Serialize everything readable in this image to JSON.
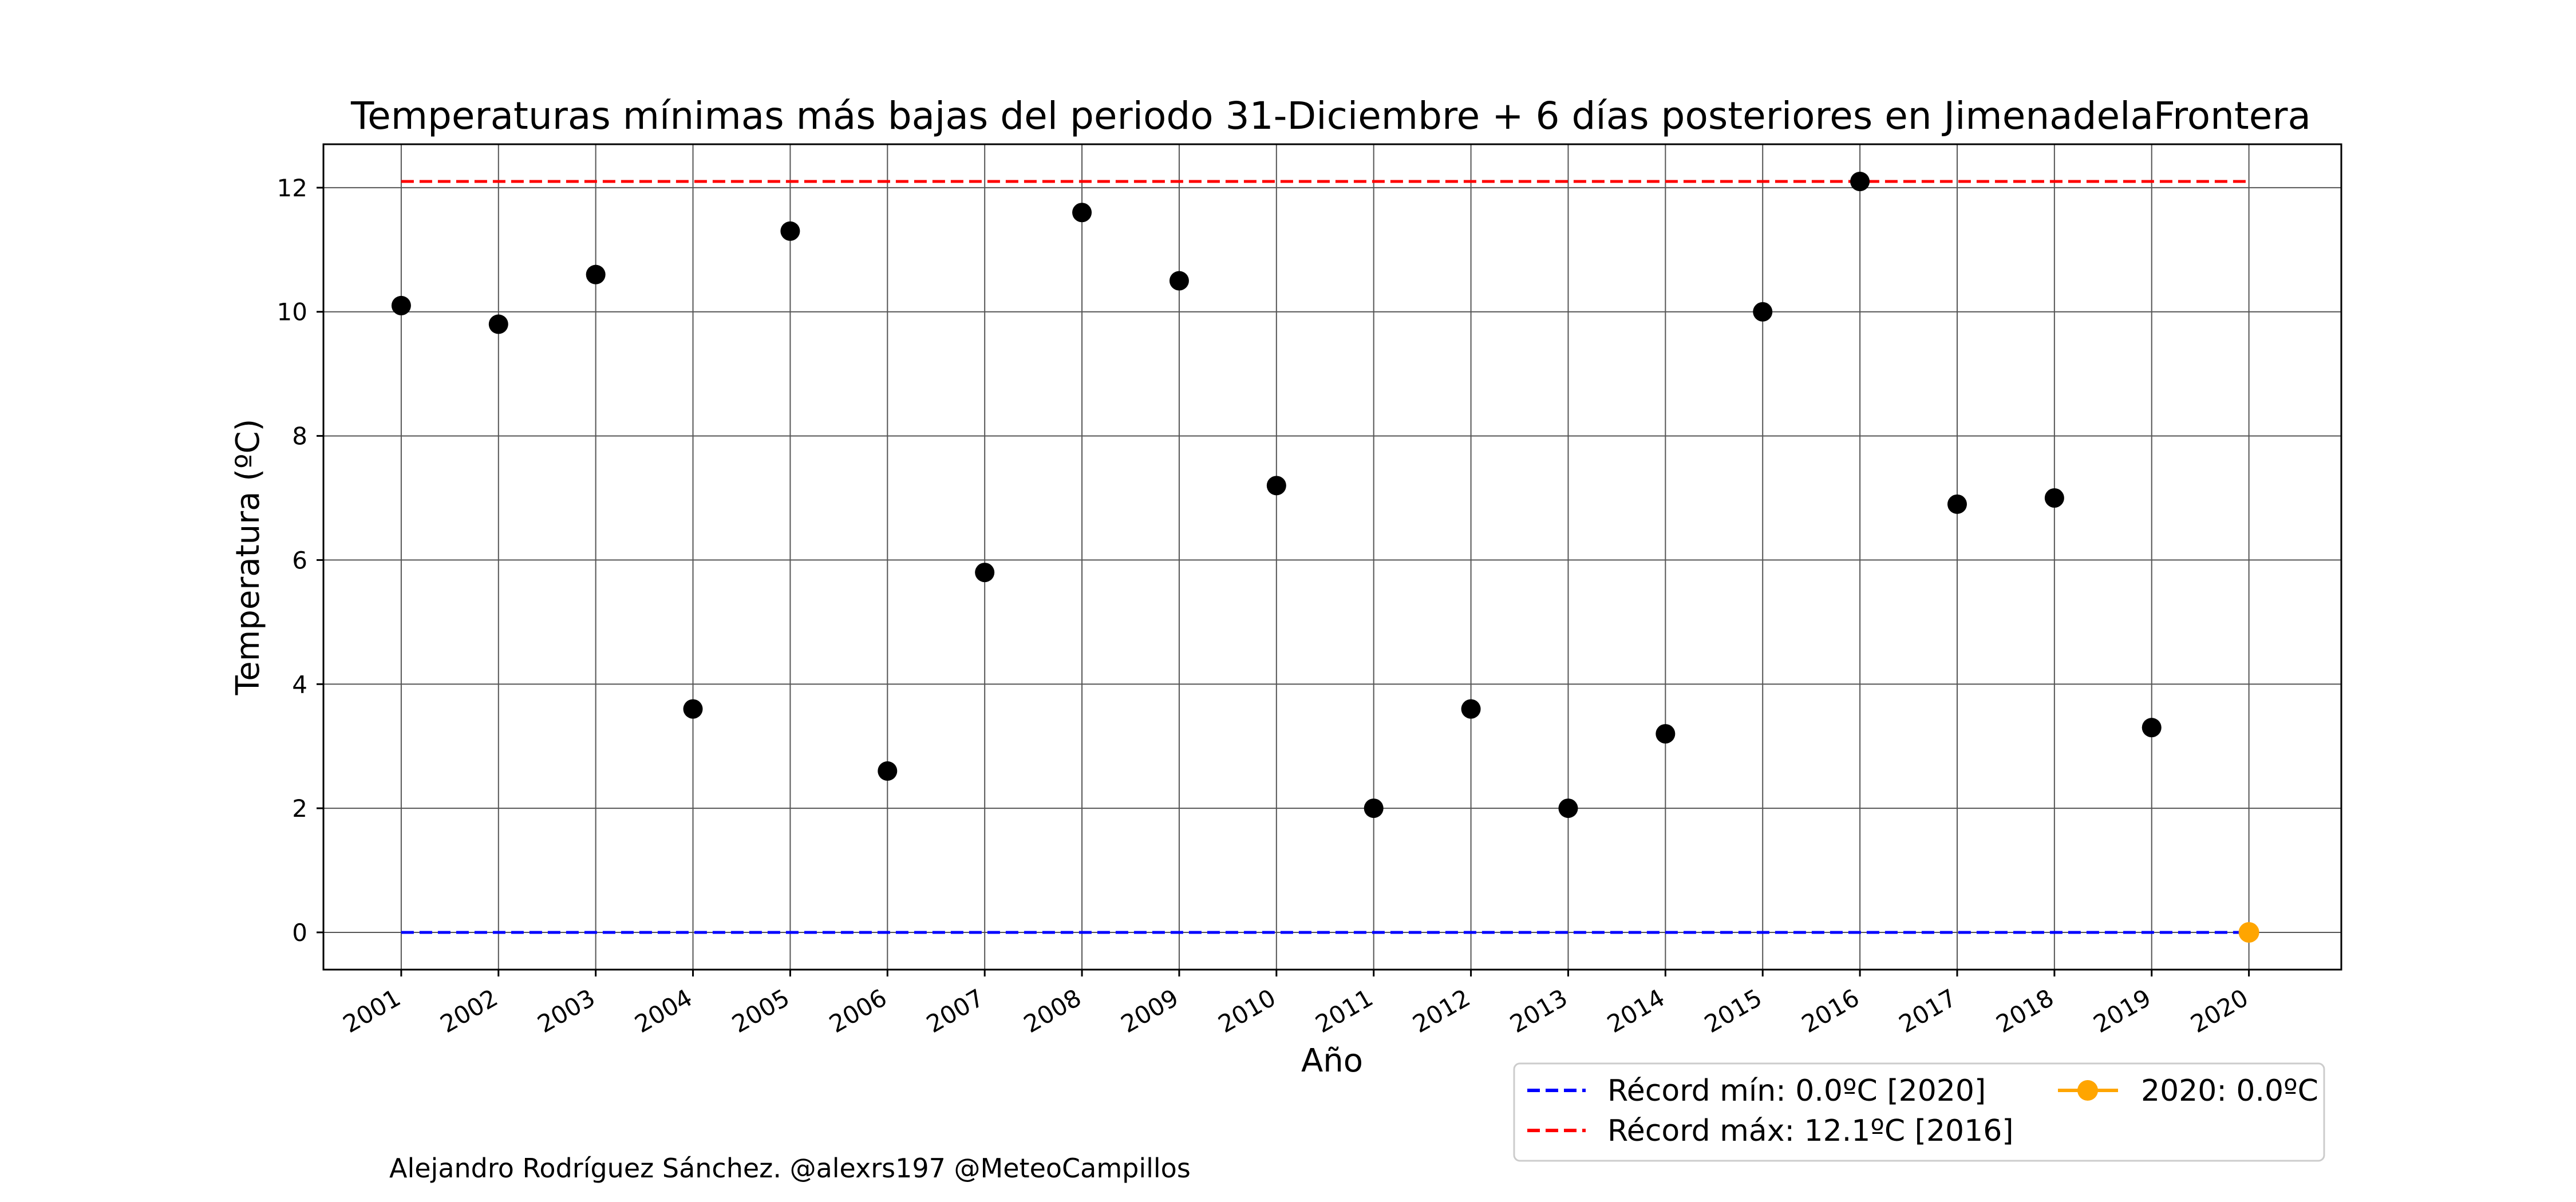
{
  "chart_data": {
    "type": "scatter",
    "title": "Temperaturas mínimas más bajas del periodo 31-Diciembre + 6 días posteriores en JimenadelaFrontera",
    "xlabel": "Año",
    "ylabel": "Temperatura (ºC)",
    "x": [
      2001,
      2002,
      2003,
      2004,
      2005,
      2006,
      2007,
      2008,
      2009,
      2010,
      2011,
      2012,
      2013,
      2014,
      2015,
      2016,
      2017,
      2018,
      2019,
      2020
    ],
    "x_tick_labels": [
      "2001",
      "2002",
      "2003",
      "2004",
      "2005",
      "2006",
      "2007",
      "2008",
      "2009",
      "2010",
      "2011",
      "2012",
      "2013",
      "2014",
      "2015",
      "2016",
      "2017",
      "2018",
      "2019",
      "2020"
    ],
    "y_ticks": [
      0,
      2,
      4,
      6,
      8,
      10,
      12
    ],
    "y_tick_labels": [
      "0",
      "2",
      "4",
      "6",
      "8",
      "10",
      "12"
    ],
    "ylim": [
      -0.6,
      12.7
    ],
    "xlim": [
      2000.2,
      2020.95
    ],
    "grid": true,
    "series": [
      {
        "kind": "scatter",
        "color": "#000000",
        "x": [
          2001,
          2002,
          2003,
          2004,
          2005,
          2006,
          2007,
          2008,
          2009,
          2010,
          2011,
          2012,
          2013,
          2014,
          2015,
          2016,
          2017,
          2018,
          2019
        ],
        "values": [
          10.1,
          9.8,
          10.6,
          3.6,
          11.3,
          2.6,
          5.8,
          11.6,
          10.5,
          7.2,
          2.0,
          3.6,
          2.0,
          3.2,
          10.0,
          12.1,
          6.9,
          7.0,
          3.3
        ]
      },
      {
        "kind": "hline",
        "name": "Récord mín: 0.0ºC [2020]",
        "color": "#0000ff",
        "dash": true,
        "value": 0.0,
        "x_range": [
          2001,
          2020
        ]
      },
      {
        "kind": "hline",
        "name": "Récord máx: 12.1ºC [2016]",
        "color": "#ff0000",
        "dash": true,
        "value": 12.1,
        "x_range": [
          2001,
          2020
        ]
      },
      {
        "kind": "point",
        "name": "2020: 0.0ºC",
        "color": "#ffa500",
        "x": 2020,
        "value": 0.0
      }
    ],
    "legend": {
      "placement": "below-right",
      "entries": [
        "Récord mín: 0.0ºC [2020]",
        "Récord máx: 12.1ºC [2016]",
        "2020: 0.0ºC"
      ]
    },
    "credit": "Alejandro Rodríguez Sánchez. @alexrs197 @MeteoCampillos"
  }
}
